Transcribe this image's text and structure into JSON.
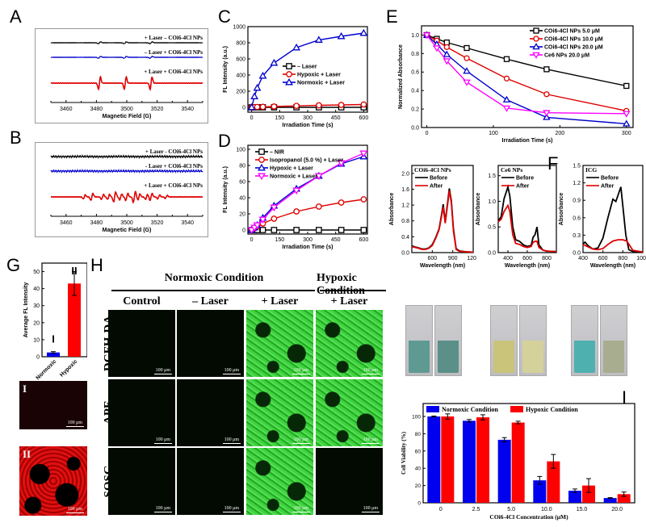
{
  "panel_labels": {
    "A": "A",
    "B": "B",
    "C": "C",
    "D": "D",
    "E": "E",
    "F": "F",
    "G": "G",
    "H": "H",
    "I": "I"
  },
  "chart_data": [
    {
      "id": "A",
      "type": "line",
      "xlabel": "Magnetic Field (G)",
      "xlim": [
        3450,
        3550
      ],
      "xticks": [
        3460,
        3480,
        3500,
        3520,
        3540
      ],
      "series": [
        {
          "name": "+ Laser – COi6-4Cl NPs",
          "color": "#000000",
          "kind": "flat-weak",
          "peaks": [
            3482,
            3499,
            3516
          ]
        },
        {
          "name": "– Laser + COi6-4Cl NPs",
          "color": "#0000cc",
          "kind": "flat-weak",
          "peaks": [
            3482,
            3499,
            3516
          ]
        },
        {
          "name": "+ Laser + COi6-4Cl NPs",
          "color": "#e00000",
          "kind": "triplet",
          "peaks": [
            3482,
            3499,
            3516
          ]
        }
      ]
    },
    {
      "id": "B",
      "type": "line",
      "xlabel": "Magnetic Field (G)",
      "xlim": [
        3450,
        3550
      ],
      "xticks": [
        3460,
        3480,
        3500,
        3520,
        3540
      ],
      "series": [
        {
          "name": "+ Laser - COi6-4Cl NPs",
          "color": "#000000",
          "kind": "noise"
        },
        {
          "name": "- Laser + COi6-4Cl NPs",
          "color": "#0000cc",
          "kind": "noise"
        },
        {
          "name": "+ Laser + COi6-4Cl NPs",
          "color": "#e00000",
          "kind": "multiplet",
          "peaks": [
            3472,
            3477,
            3484,
            3488,
            3492,
            3496,
            3500,
            3505,
            3508,
            3513,
            3516,
            3521,
            3526
          ]
        }
      ]
    },
    {
      "id": "C",
      "type": "line",
      "xlabel": "Irradiation Time (s)",
      "ylabel": "FL Intensity (a.u.)",
      "xlim": [
        -20,
        620
      ],
      "ylim": [
        -60,
        1000
      ],
      "xticks": [
        0,
        150,
        300,
        450,
        600
      ],
      "yticks": [
        0,
        200,
        400,
        600,
        800,
        1000
      ],
      "legend": "center-right",
      "x": [
        0,
        15,
        30,
        60,
        120,
        240,
        360,
        480,
        600
      ],
      "series": [
        {
          "name": "– Laser",
          "color": "#000000",
          "marker": "square",
          "values": [
            0,
            0,
            0,
            0,
            0,
            0,
            0,
            0,
            0
          ]
        },
        {
          "name": "Hypoxic + Laser",
          "color": "#e00000",
          "marker": "circle",
          "values": [
            0,
            2,
            4,
            6,
            10,
            18,
            25,
            30,
            35
          ]
        },
        {
          "name": "Normoxic + Laser",
          "color": "#0000cc",
          "marker": "triangle",
          "values": [
            0,
            135,
            240,
            390,
            550,
            740,
            835,
            880,
            920
          ]
        }
      ]
    },
    {
      "id": "D",
      "type": "line",
      "xlabel": "Irradiation Time (s)",
      "ylabel": "FL Intensity (a.u.)",
      "xlim": [
        -20,
        620
      ],
      "ylim": [
        -5,
        105
      ],
      "xticks": [
        0,
        150,
        300,
        450,
        600
      ],
      "yticks": [
        0,
        20,
        40,
        60,
        80,
        100
      ],
      "legend": "top-left",
      "x": [
        0,
        15,
        30,
        60,
        120,
        240,
        360,
        480,
        600
      ],
      "series": [
        {
          "name": "– NIR",
          "color": "#000000",
          "marker": "square",
          "values": [
            0,
            0,
            0,
            0,
            0,
            0,
            0,
            0,
            0
          ]
        },
        {
          "name": "Isopropanol (5.0 %) + Laser",
          "color": "#e00000",
          "marker": "circle",
          "values": [
            0,
            2,
            4,
            8,
            14,
            23,
            29,
            34,
            38
          ]
        },
        {
          "name": "Hypoxic + Laser",
          "color": "#0000cc",
          "marker": "triangle",
          "values": [
            0,
            3,
            6,
            15,
            30,
            51,
            67,
            82,
            91
          ]
        },
        {
          "name": "Normoxic + Laser",
          "color": "#ff00ff",
          "marker": "triangle-down",
          "values": [
            0,
            3,
            6,
            13,
            28,
            49,
            67,
            83,
            95
          ]
        }
      ]
    },
    {
      "id": "E",
      "type": "line",
      "xlabel": "Irradiation Time (s)",
      "ylabel": "Normalized Absorbance",
      "xlim": [
        -8,
        310
      ],
      "ylim": [
        0,
        1.1
      ],
      "xticks": [
        0,
        100,
        200,
        300
      ],
      "yticks": [
        0.0,
        0.2,
        0.4,
        0.6,
        0.8,
        1.0
      ],
      "legend": "top-right",
      "x": [
        0,
        15,
        30,
        60,
        120,
        180,
        300
      ],
      "series": [
        {
          "name": "COi6-4Cl NPs 5.0 μM",
          "color": "#000000",
          "marker": "square",
          "values": [
            1.0,
            0.96,
            0.92,
            0.86,
            0.74,
            0.63,
            0.45
          ]
        },
        {
          "name": "COi6-4Cl NPs 10.0 μM",
          "color": "#e00000",
          "marker": "circle",
          "values": [
            1.0,
            0.94,
            0.87,
            0.75,
            0.53,
            0.36,
            0.18
          ]
        },
        {
          "name": "COi6-4Cl NPs 20.0 μM",
          "color": "#0000cc",
          "marker": "triangle",
          "values": [
            1.0,
            0.9,
            0.79,
            0.61,
            0.3,
            0.11,
            0.04
          ]
        },
        {
          "name": "Ce6 NPs 20.0 μM",
          "color": "#ff00ff",
          "marker": "triangle-down",
          "values": [
            1.0,
            0.86,
            0.72,
            0.49,
            0.21,
            0.16,
            0.15
          ]
        }
      ]
    },
    {
      "id": "F1",
      "type": "line",
      "title": "COi6-4Cl NPs",
      "xlabel": "Wavelength (nm)",
      "ylabel": "Absorbance",
      "xlim": [
        300,
        1200
      ],
      "ylim": [
        0,
        2.2
      ],
      "xticks": [
        600,
        900,
        1200
      ],
      "yticks": [
        0.0,
        0.4,
        0.8,
        1.2,
        1.6,
        2.0
      ],
      "legend": "top-left",
      "series": [
        {
          "name": "Before",
          "color": "#000000",
          "points": [
            [
              300,
              0.17
            ],
            [
              350,
              0.14
            ],
            [
              400,
              0.12
            ],
            [
              450,
              0.09
            ],
            [
              500,
              0.09
            ],
            [
              550,
              0.12
            ],
            [
              600,
              0.2
            ],
            [
              650,
              0.38
            ],
            [
              700,
              0.6
            ],
            [
              740,
              1.0
            ],
            [
              760,
              1.22
            ],
            [
              790,
              0.78
            ],
            [
              820,
              1.2
            ],
            [
              850,
              1.62
            ],
            [
              880,
              1.3
            ],
            [
              910,
              0.6
            ],
            [
              950,
              0.1
            ],
            [
              1000,
              0.04
            ],
            [
              1100,
              0.02
            ],
            [
              1200,
              0.01
            ]
          ]
        },
        {
          "name": "After",
          "color": "#e00000",
          "points": [
            [
              300,
              0.15
            ],
            [
              350,
              0.13
            ],
            [
              400,
              0.11
            ],
            [
              450,
              0.08
            ],
            [
              500,
              0.08
            ],
            [
              550,
              0.11
            ],
            [
              600,
              0.18
            ],
            [
              650,
              0.36
            ],
            [
              700,
              0.58
            ],
            [
              740,
              0.95
            ],
            [
              760,
              1.15
            ],
            [
              790,
              0.74
            ],
            [
              820,
              1.15
            ],
            [
              850,
              1.56
            ],
            [
              880,
              1.25
            ],
            [
              910,
              0.55
            ],
            [
              950,
              0.08
            ],
            [
              1000,
              0.03
            ],
            [
              1100,
              0.02
            ],
            [
              1200,
              0.01
            ]
          ]
        }
      ]
    },
    {
      "id": "F2",
      "type": "line",
      "title": "Ce6 NPs",
      "xlabel": "Wavelength (nm)",
      "ylabel": "Absorbance",
      "xlim": [
        300,
        900
      ],
      "ylim": [
        0,
        1.7
      ],
      "xticks": [
        400,
        600,
        800
      ],
      "yticks": [
        0.0,
        0.5,
        1.0,
        1.5
      ],
      "legend": "top-left",
      "series": [
        {
          "name": "Before",
          "color": "#000000",
          "points": [
            [
              300,
              0.62
            ],
            [
              330,
              0.7
            ],
            [
              360,
              1.05
            ],
            [
              400,
              1.28
            ],
            [
              420,
              1.1
            ],
            [
              450,
              0.5
            ],
            [
              480,
              0.25
            ],
            [
              520,
              0.22
            ],
            [
              560,
              0.15
            ],
            [
              600,
              0.12
            ],
            [
              640,
              0.14
            ],
            [
              660,
              0.3
            ],
            [
              680,
              0.35
            ],
            [
              700,
              0.5
            ],
            [
              720,
              0.15
            ],
            [
              760,
              0.05
            ],
            [
              800,
              0.03
            ],
            [
              900,
              0.02
            ]
          ]
        },
        {
          "name": "After",
          "color": "#e00000",
          "points": [
            [
              300,
              0.6
            ],
            [
              330,
              0.65
            ],
            [
              360,
              0.8
            ],
            [
              400,
              0.92
            ],
            [
              420,
              0.8
            ],
            [
              450,
              0.35
            ],
            [
              480,
              0.18
            ],
            [
              520,
              0.16
            ],
            [
              560,
              0.12
            ],
            [
              600,
              0.1
            ],
            [
              640,
              0.12
            ],
            [
              660,
              0.2
            ],
            [
              680,
              0.22
            ],
            [
              700,
              0.22
            ],
            [
              720,
              0.1
            ],
            [
              760,
              0.05
            ],
            [
              800,
              0.03
            ],
            [
              900,
              0.02
            ]
          ]
        }
      ]
    },
    {
      "id": "F3",
      "type": "line",
      "title": "ICG",
      "xlabel": "Wavelength (nm)",
      "ylabel": "Absorbance",
      "xlim": [
        400,
        1000
      ],
      "ylim": [
        0,
        1.5
      ],
      "xticks": [
        400,
        600,
        800,
        1000
      ],
      "yticks": [
        0.0,
        0.3,
        0.6,
        0.9,
        1.2,
        1.5
      ],
      "legend": "top-left",
      "series": [
        {
          "name": "Before",
          "color": "#000000",
          "points": [
            [
              400,
              0.15
            ],
            [
              420,
              0.18
            ],
            [
              450,
              0.12
            ],
            [
              500,
              0.06
            ],
            [
              550,
              0.08
            ],
            [
              600,
              0.25
            ],
            [
              650,
              0.6
            ],
            [
              700,
              0.92
            ],
            [
              730,
              0.88
            ],
            [
              780,
              1.13
            ],
            [
              800,
              0.8
            ],
            [
              830,
              0.3
            ],
            [
              860,
              0.05
            ],
            [
              900,
              0.02
            ],
            [
              1000,
              0.01
            ]
          ]
        },
        {
          "name": "After",
          "color": "#e00000",
          "points": [
            [
              400,
              0.14
            ],
            [
              450,
              0.1
            ],
            [
              500,
              0.06
            ],
            [
              550,
              0.05
            ],
            [
              600,
              0.07
            ],
            [
              650,
              0.14
            ],
            [
              700,
              0.2
            ],
            [
              750,
              0.22
            ],
            [
              800,
              0.22
            ],
            [
              840,
              0.2
            ],
            [
              870,
              0.12
            ],
            [
              900,
              0.04
            ],
            [
              1000,
              0.01
            ]
          ]
        }
      ]
    },
    {
      "id": "G",
      "type": "bar",
      "ylabel": "Average FL Intensity",
      "ylim": [
        0,
        55
      ],
      "yticks": [
        0,
        10,
        20,
        30,
        40,
        50
      ],
      "categories": [
        "Normoxic",
        "Hypoxic"
      ],
      "bar_labels": [
        "I",
        "II"
      ],
      "values": [
        2.5,
        43
      ],
      "errors": [
        0.5,
        7
      ],
      "colors": [
        "#0000ee",
        "#ff0000"
      ]
    },
    {
      "id": "I",
      "type": "bar",
      "xlabel": "COi6-4Cl Concentration (μM)",
      "ylabel": "Cell Viability (%)",
      "ylim": [
        0,
        115
      ],
      "yticks": [
        0,
        20,
        40,
        60,
        80,
        100
      ],
      "legend": "top-left",
      "categories": [
        "0",
        "2.5",
        "5.0",
        "10.0",
        "15.0",
        "20.0"
      ],
      "series": [
        {
          "name": "Normoxic Condition",
          "color": "#0000ee",
          "values": [
            100,
            95,
            73,
            26,
            14,
            5.5
          ],
          "errors": [
            0.5,
            1.5,
            2.5,
            4.5,
            2,
            0.5
          ]
        },
        {
          "name": "Hypoxic Condition",
          "color": "#ff0000",
          "values": [
            100,
            99,
            93,
            48,
            20,
            10
          ],
          "errors": [
            3,
            3,
            1.5,
            8,
            8,
            2.5
          ]
        }
      ]
    }
  ],
  "panel_h": {
    "group_normoxic": "Normoxic Condition",
    "group_hypoxic": "Hypoxic Condition",
    "columns": [
      "Control",
      "– Laser",
      "+ Laser",
      "+ Laser"
    ],
    "rows": [
      "DCFH-DA",
      "APF",
      "SOSG"
    ],
    "scale_bar": "100 μm",
    "fluorescence": [
      [
        0,
        0,
        1,
        1
      ],
      [
        0,
        0,
        1,
        1
      ],
      [
        0,
        0,
        1,
        0
      ]
    ]
  },
  "panel_g_images": {
    "labels": [
      "I",
      "II"
    ],
    "scale_bar": "100 μm"
  },
  "panel_f_cuvettes": [
    {
      "sample": "COi6-4Cl NPs",
      "before": "#5f9a92",
      "after": "#5a9088"
    },
    {
      "sample": "Ce6 NPs",
      "before": "#c9c47a",
      "after": "#d4d29a"
    },
    {
      "sample": "ICG",
      "before": "#4fb0b0",
      "after": "#a9ad90"
    }
  ]
}
